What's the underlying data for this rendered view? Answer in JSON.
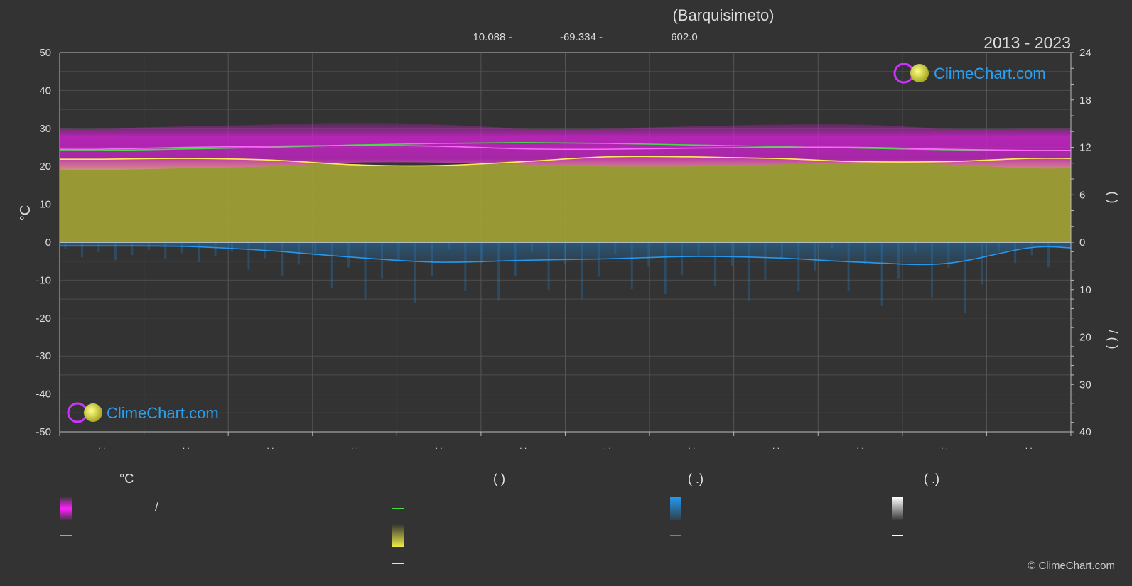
{
  "header": {
    "title": "(Barquisimeto)",
    "lat": "10.088 -",
    "lon": "-69.334 -",
    "elev": "602.0",
    "period": "2013 - 2023"
  },
  "branding": {
    "logo_text": "ClimeChart.com",
    "copyright": "© ClimeChart.com"
  },
  "axes": {
    "left_unit": "°C",
    "right_top_label": "(   )",
    "right_bottom_label": "/    (   )",
    "month_tick_text": ". ."
  },
  "legend": {
    "col1_head": "°C",
    "col1_row1": "/",
    "col2_head": "(           )",
    "col3_head": "(    .)",
    "col4_head": "(    .)"
  },
  "colors": {
    "bg": "#333333",
    "temp_band": "#cc22cc",
    "mean_temp_line": "#ff66ff",
    "daylight_line": "#44dd44",
    "sunshine_area": "#aaaa33",
    "sunshine_line": "#ffee55",
    "precip": "#2277bb",
    "precip_line": "#2299ee",
    "logo_blue": "#2aa0f0"
  },
  "chart_data": {
    "type": "line",
    "x": [
      1,
      2,
      3,
      4,
      5,
      6,
      7,
      8,
      9,
      10,
      11,
      12
    ],
    "ylim_left": [
      -50,
      50
    ],
    "yticks_left": [
      50,
      40,
      30,
      20,
      10,
      0,
      -10,
      -20,
      -30,
      -40,
      -50
    ],
    "yticks_right_top": [
      24,
      18,
      12,
      6,
      0
    ],
    "yticks_right_bottom": [
      10,
      20,
      30,
      40
    ],
    "right_top_range": [
      0,
      24
    ],
    "right_bottom_range": [
      0,
      40
    ],
    "series": [
      {
        "key": "max_temp",
        "values": [
          30,
          30.5,
          31,
          31.5,
          31,
          30,
          30,
          30.5,
          31,
          31,
          30,
          30
        ]
      },
      {
        "key": "min_temp",
        "values": [
          19,
          19.5,
          20,
          21,
          21,
          20.5,
          20,
          20,
          20.5,
          21,
          20.5,
          19.5
        ]
      },
      {
        "key": "mean_temp",
        "values": [
          24.5,
          25,
          25.3,
          25.5,
          25.3,
          24.6,
          24.5,
          24.8,
          25,
          25,
          24.5,
          24.2
        ]
      },
      {
        "key": "daylight_hours",
        "values": [
          11.6,
          11.8,
          12.0,
          12.3,
          12.5,
          12.6,
          12.5,
          12.3,
          12.1,
          11.9,
          11.7,
          11.6
        ]
      },
      {
        "key": "sunshine_hours",
        "values": [
          10.5,
          10.6,
          10.4,
          9.8,
          9.7,
          10.2,
          10.8,
          10.8,
          10.6,
          10.2,
          10.2,
          10.6
        ]
      },
      {
        "key": "precip_mm",
        "values": [
          0.8,
          0.9,
          1.8,
          3.2,
          4.2,
          3.8,
          3.5,
          3.0,
          3.3,
          4.2,
          4.5,
          1.2
        ]
      }
    ]
  }
}
